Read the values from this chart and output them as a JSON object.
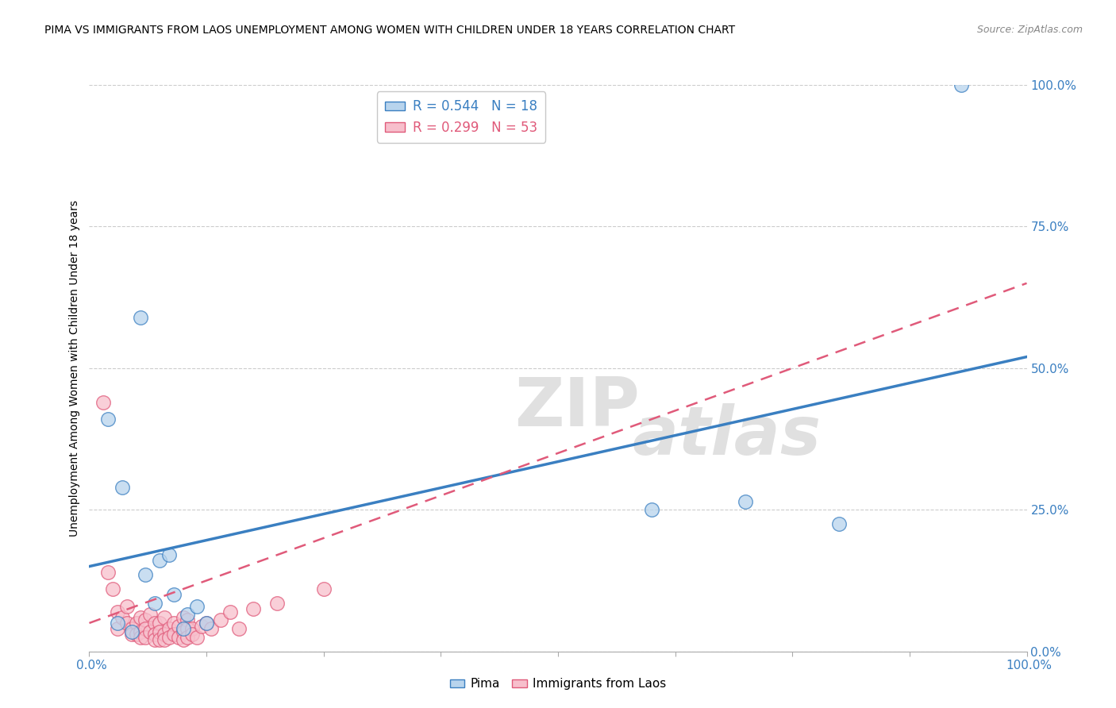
{
  "title": "PIMA VS IMMIGRANTS FROM LAOS UNEMPLOYMENT AMONG WOMEN WITH CHILDREN UNDER 18 YEARS CORRELATION CHART",
  "source": "Source: ZipAtlas.com",
  "ylabel": "Unemployment Among Women with Children Under 18 years",
  "ytick_labels": [
    "0.0%",
    "25.0%",
    "50.0%",
    "75.0%",
    "100.0%"
  ],
  "ytick_values": [
    0,
    25,
    50,
    75,
    100
  ],
  "legend_pima": "R = 0.544   N = 18",
  "legend_laos": "R = 0.299   N = 53",
  "pima_fill_color": "#b8d4ed",
  "laos_fill_color": "#f7bfcc",
  "pima_line_color": "#3a7fc1",
  "laos_line_color": "#e05a7a",
  "watermark_color": "#e0e0e0",
  "background_color": "#ffffff",
  "grid_color": "#cccccc",
  "pima_trend": [
    0,
    15,
    100,
    52
  ],
  "laos_trend": [
    0,
    5,
    100,
    65
  ],
  "pima_points": [
    [
      2.0,
      41.0
    ],
    [
      3.5,
      29.0
    ],
    [
      5.5,
      59.0
    ],
    [
      6.0,
      13.5
    ],
    [
      7.0,
      8.5
    ],
    [
      7.5,
      16.0
    ],
    [
      8.5,
      17.0
    ],
    [
      9.0,
      10.0
    ],
    [
      10.0,
      4.0
    ],
    [
      10.5,
      6.5
    ],
    [
      11.5,
      8.0
    ],
    [
      12.5,
      5.0
    ],
    [
      60.0,
      25.0
    ],
    [
      70.0,
      26.5
    ],
    [
      80.0,
      22.5
    ],
    [
      93.0,
      100.0
    ],
    [
      3.0,
      5.0
    ],
    [
      4.5,
      3.5
    ]
  ],
  "laos_points": [
    [
      1.5,
      44.0
    ],
    [
      2.0,
      14.0
    ],
    [
      2.5,
      11.0
    ],
    [
      3.0,
      7.0
    ],
    [
      3.0,
      4.0
    ],
    [
      3.5,
      6.0
    ],
    [
      4.0,
      8.0
    ],
    [
      4.0,
      5.0
    ],
    [
      4.5,
      4.0
    ],
    [
      4.5,
      3.0
    ],
    [
      5.0,
      5.0
    ],
    [
      5.0,
      3.0
    ],
    [
      5.5,
      6.0
    ],
    [
      5.5,
      3.5
    ],
    [
      5.5,
      2.5
    ],
    [
      6.0,
      5.5
    ],
    [
      6.0,
      4.0
    ],
    [
      6.0,
      2.5
    ],
    [
      6.5,
      6.5
    ],
    [
      6.5,
      3.5
    ],
    [
      7.0,
      5.0
    ],
    [
      7.0,
      3.0
    ],
    [
      7.0,
      2.0
    ],
    [
      7.5,
      5.0
    ],
    [
      7.5,
      3.5
    ],
    [
      7.5,
      2.0
    ],
    [
      8.0,
      6.0
    ],
    [
      8.0,
      3.0
    ],
    [
      8.0,
      2.0
    ],
    [
      8.5,
      4.0
    ],
    [
      8.5,
      2.5
    ],
    [
      9.0,
      5.0
    ],
    [
      9.0,
      3.0
    ],
    [
      9.5,
      4.5
    ],
    [
      9.5,
      2.5
    ],
    [
      10.0,
      6.0
    ],
    [
      10.0,
      3.5
    ],
    [
      10.0,
      2.0
    ],
    [
      10.5,
      5.5
    ],
    [
      10.5,
      4.0
    ],
    [
      10.5,
      2.5
    ],
    [
      11.0,
      4.0
    ],
    [
      11.0,
      3.0
    ],
    [
      11.5,
      2.5
    ],
    [
      12.0,
      4.5
    ],
    [
      12.5,
      5.0
    ],
    [
      13.0,
      4.0
    ],
    [
      14.0,
      5.5
    ],
    [
      15.0,
      7.0
    ],
    [
      16.0,
      4.0
    ],
    [
      17.5,
      7.5
    ],
    [
      20.0,
      8.5
    ],
    [
      25.0,
      11.0
    ]
  ]
}
